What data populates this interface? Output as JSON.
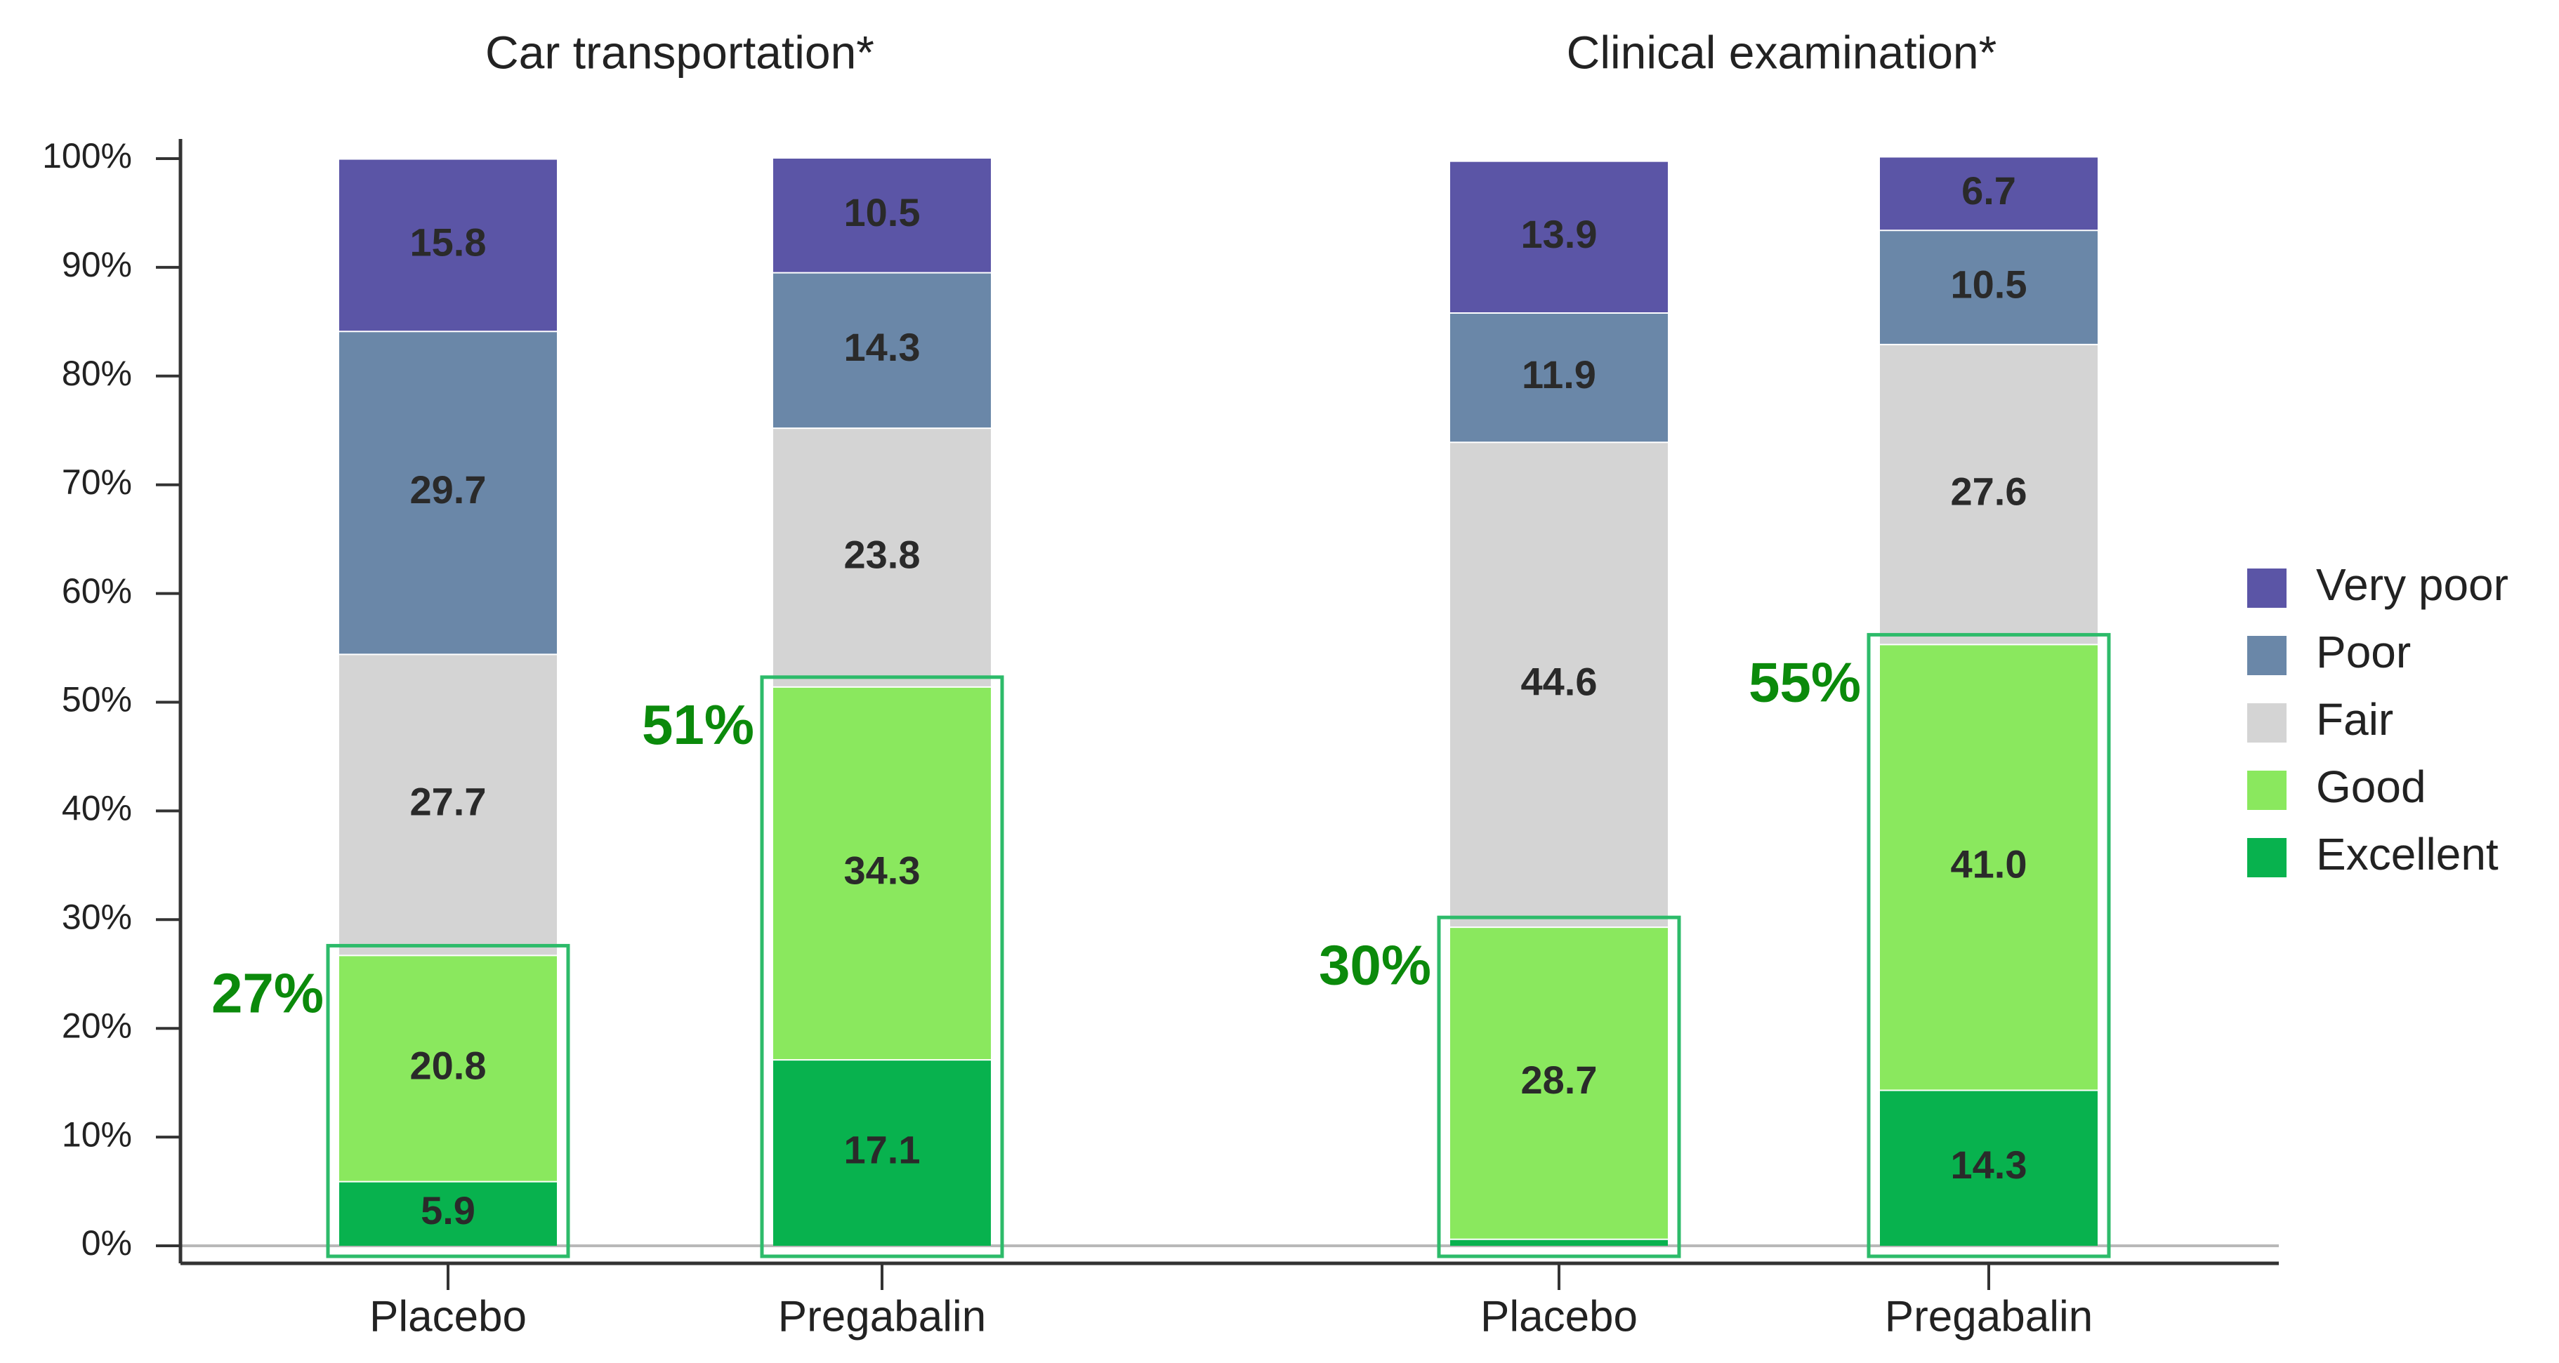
{
  "chart_data": {
    "type": "bar",
    "stacked": true,
    "y_ticks": [
      "0%",
      "10%",
      "20%",
      "30%",
      "40%",
      "50%",
      "60%",
      "70%",
      "80%",
      "90%",
      "100%"
    ],
    "ylim": [
      0,
      100
    ],
    "legend": {
      "placement": "right",
      "items": [
        {
          "name": "Very poor",
          "color": "#5b55a6"
        },
        {
          "name": "Poor",
          "color": "#6a87a8"
        },
        {
          "name": "Fair",
          "color": "#d4d4d4"
        },
        {
          "name": "Good",
          "color": "#8ae85e"
        },
        {
          "name": "Excellent",
          "color": "#08b24e"
        }
      ]
    },
    "panels": [
      {
        "title": "Car transportation*",
        "categories": [
          "Placebo",
          "Pregabalin"
        ],
        "bars": [
          {
            "category": "Placebo",
            "highlight": "27%",
            "segments": [
              {
                "name": "Excellent",
                "value": 5.9,
                "label": "5.9"
              },
              {
                "name": "Good",
                "value": 20.8,
                "label": "20.8"
              },
              {
                "name": "Fair",
                "value": 27.7,
                "label": "27.7"
              },
              {
                "name": "Poor",
                "value": 29.7,
                "label": "29.7"
              },
              {
                "name": "Very poor",
                "value": 15.8,
                "label": "15.8"
              }
            ]
          },
          {
            "category": "Pregabalin",
            "highlight": "51%",
            "segments": [
              {
                "name": "Excellent",
                "value": 17.1,
                "label": "17.1"
              },
              {
                "name": "Good",
                "value": 34.3,
                "label": "34.3"
              },
              {
                "name": "Fair",
                "value": 23.8,
                "label": "23.8"
              },
              {
                "name": "Poor",
                "value": 14.3,
                "label": "14.3"
              },
              {
                "name": "Very poor",
                "value": 10.5,
                "label": "10.5"
              }
            ]
          }
        ]
      },
      {
        "title": "Clinical examination*",
        "categories": [
          "Placebo",
          "Pregabalin"
        ],
        "bars": [
          {
            "category": "Placebo",
            "highlight": "30%",
            "segments": [
              {
                "name": "Excellent",
                "value": 0.6,
                "label": ""
              },
              {
                "name": "Good",
                "value": 28.7,
                "label": "28.7"
              },
              {
                "name": "Fair",
                "value": 44.6,
                "label": "44.6"
              },
              {
                "name": "Poor",
                "value": 11.9,
                "label": "11.9"
              },
              {
                "name": "Very poor",
                "value": 13.9,
                "label": "13.9"
              }
            ]
          },
          {
            "category": "Pregabalin",
            "highlight": "55%",
            "segments": [
              {
                "name": "Excellent",
                "value": 14.3,
                "label": "14.3"
              },
              {
                "name": "Good",
                "value": 41.0,
                "label": "41.0"
              },
              {
                "name": "Fair",
                "value": 27.6,
                "label": "27.6"
              },
              {
                "name": "Poor",
                "value": 10.5,
                "label": "10.5"
              },
              {
                "name": "Very poor",
                "value": 6.7,
                "label": "6.7"
              }
            ]
          }
        ]
      }
    ]
  }
}
